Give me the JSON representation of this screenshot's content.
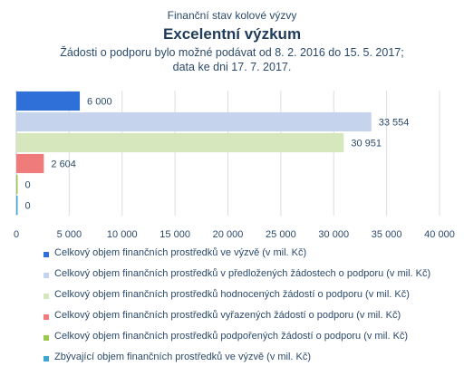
{
  "chart_data": {
    "type": "bar",
    "orientation": "horizontal",
    "supertitle": "Finanční stav kolové výzvy",
    "title": "Excelentní výzkum",
    "subtitle_lines": [
      "Žádosti o podporu bylo možné  podávat od 8. 2. 2016 do 15. 5. 2017;",
      "data ke dni 17. 7. 2017."
    ],
    "xlim": [
      0,
      40000
    ],
    "x_ticks": [
      0,
      5000,
      10000,
      15000,
      20000,
      25000,
      30000,
      35000,
      40000
    ],
    "x_tick_labels": [
      "0",
      "5 000",
      "10 000",
      "15 000",
      "20 000",
      "25 000",
      "30 000",
      "35 000",
      "40 000"
    ],
    "grid": true,
    "legend_position": "bottom",
    "series": [
      {
        "name": "Celkový objem finančních prostředků ve výzvě (v mil. Kč)",
        "value": 6000,
        "label": "6 000",
        "color": "#2e6fd8"
      },
      {
        "name": "Celkový objem finančních prostředků v předložených žádostech o podporu (v mil. Kč)",
        "value": 33554,
        "label": "33 554",
        "color": "#c5d3ec"
      },
      {
        "name": "Celkový objem finančních prostředků hodnocených žádostí o podporu (v mil. Kč)",
        "value": 30951,
        "label": "30 951",
        "color": "#d6e6bd"
      },
      {
        "name": "Celkový objem finančních prostředků vyřazených žádostí o podporu (v mil. Kč)",
        "value": 2604,
        "label": "2 604",
        "color": "#ef7b7b"
      },
      {
        "name": "Celkový objem finančních prostředků podpořených žádostí o podporu (v mil. Kč)",
        "value": 0,
        "label": "0",
        "color": "#9bc94f"
      },
      {
        "name": "Zbývající objem finančních prostředků ve výzvě (v mil. Kč)",
        "value": 0,
        "label": "0",
        "color": "#3fa7cf"
      }
    ]
  }
}
